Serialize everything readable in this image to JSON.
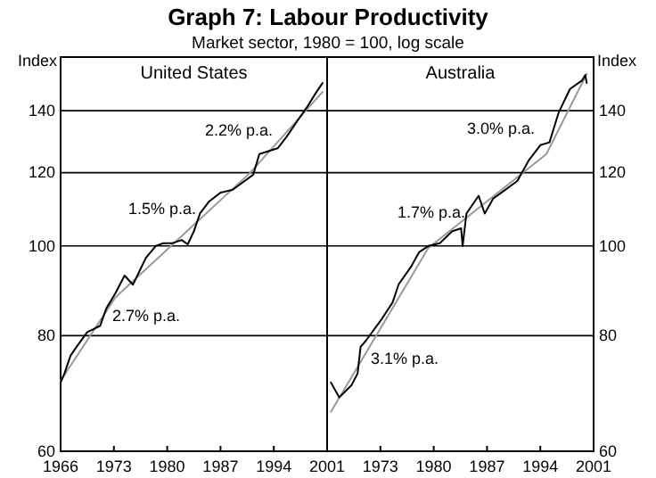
{
  "chart_data": [
    {
      "type": "line",
      "title": "United States",
      "ylabel": "Index",
      "log": "y",
      "grid": "y",
      "annotations": [
        "Graph 7: Labour Productivity",
        "Market sector, 1980 = 100, log scale",
        "2.7% p.a.",
        "1.5% p.a.",
        "2.2% p.a."
      ],
      "xlim": [
        1966,
        2001
      ],
      "xticks": [
        1966,
        1973,
        1980,
        1987,
        1994,
        2001
      ],
      "ylim": [
        60,
        160
      ],
      "yticks": [
        60,
        80,
        100,
        120,
        140
      ],
      "series": [
        {
          "color": "#999999",
          "x": [
            1966,
            1973.2,
            1990.9,
            2000.4
          ],
          "values": [
            71.5,
            88,
            120,
            146.7
          ]
        },
        {
          "color": "#000000",
          "x": [
            1966,
            1966.5,
            1967.3,
            1968.1,
            1969.5,
            1970.3,
            1971.2,
            1972,
            1973.2,
            1974.4,
            1975.5,
            1977.2,
            1978.5,
            1979.5,
            1980.7,
            1981.9,
            1982.7,
            1983.5,
            1984.3,
            1985.5,
            1987,
            1988.6,
            1990.2,
            1991.3,
            1992.1,
            1993.3,
            1994.5,
            1995.7,
            1997.3,
            1998.4,
            1999.6,
            2000.4
          ],
          "values": [
            71.2,
            72.8,
            76.1,
            77.8,
            80.7,
            81.3,
            82,
            85.6,
            88.9,
            92.9,
            90.8,
            97.1,
            100,
            100.7,
            100.7,
            101.5,
            100.4,
            103.7,
            108.4,
            111.7,
            114.2,
            115,
            117.6,
            119.4,
            125.7,
            126.6,
            127.5,
            131.3,
            137.3,
            141.4,
            146.7,
            150
          ]
        }
      ]
    },
    {
      "type": "line",
      "title": "Australia",
      "y2label": "Index",
      "log": "y2",
      "grid": "y",
      "annotations": [
        "3.1% p.a.",
        "1.7% p.a.",
        "3.0% p.a."
      ],
      "xlim": [
        1966,
        2001
      ],
      "xticks": [
        {
          "value": 1966,
          "label": null
        },
        1973,
        1980,
        1987,
        1994,
        2001
      ],
      "y2lim": [
        60,
        160
      ],
      "y2ticks": [
        60,
        80,
        100,
        120,
        140
      ],
      "series": [
        {
          "color": "#999999",
          "axis": "y2",
          "x": [
            1966.5,
            1979.3,
            1994.8,
            2000.1
          ],
          "values": [
            66.2,
            99.5,
            125.7,
            153.5
          ]
        },
        {
          "color": "#000000",
          "axis": "y2",
          "x": [
            1966.5,
            1967.6,
            1969.2,
            1970,
            1970.4,
            1971.1,
            1973.1,
            1974.6,
            1975.4,
            1977,
            1978.1,
            1979.3,
            1980.8,
            1982.4,
            1983.6,
            1983.8,
            1984.3,
            1985.9,
            1986.7,
            1987.8,
            1989.4,
            1991,
            1992.5,
            1994,
            1995.2,
            1996.4,
            1997.9,
            1999.5,
            1999.9,
            2000.1
          ],
          "values": [
            71.2,
            68.6,
            70.7,
            72.8,
            77.8,
            79,
            83.2,
            86.9,
            90.9,
            94.9,
            98.5,
            100,
            100.7,
            103.7,
            104.5,
            100,
            108.4,
            113.3,
            108.4,
            112.5,
            115,
            117.6,
            123.8,
            128.5,
            129.4,
            139.3,
            147.8,
            151,
            153,
            150
          ]
        }
      ]
    }
  ]
}
